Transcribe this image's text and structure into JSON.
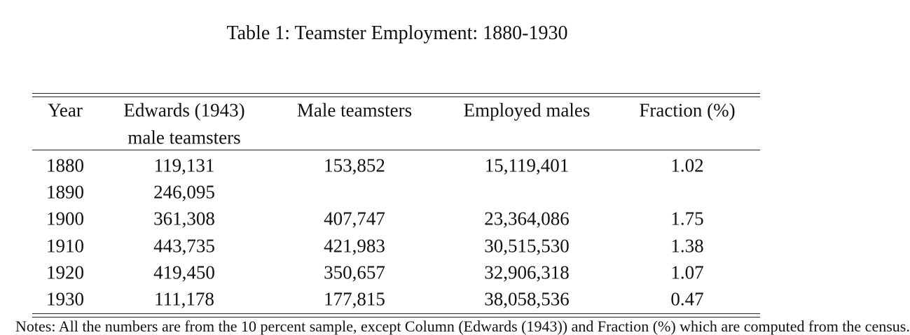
{
  "title": "Table 1: Teamster Employment: 1880-1930",
  "table": {
    "columns": [
      {
        "label": "Year"
      },
      {
        "label": "Edwards (1943)",
        "sublabel": "male teamsters"
      },
      {
        "label": "Male teamsters"
      },
      {
        "label": "Employed males"
      },
      {
        "label": "Fraction (%)"
      }
    ],
    "rows": [
      [
        "1880",
        "119,131",
        "153,852",
        "15,119,401",
        "1.02"
      ],
      [
        "1890",
        "246,095",
        null,
        null,
        null
      ],
      [
        "1900",
        "361,308",
        "407,747",
        "23,364,086",
        "1.75"
      ],
      [
        "1910",
        "443,735",
        "421,983",
        "30,515,530",
        "1.38"
      ],
      [
        "1920",
        "419,450",
        "350,657",
        "32,906,318",
        "1.07"
      ],
      [
        "1930",
        "111,178",
        "177,815",
        "38,058,536",
        "0.47"
      ]
    ]
  },
  "note": "Notes: All the numbers are from the 10 percent sample, except Column (Edwards (1943)) and Fraction (%) which are computed from the census."
}
